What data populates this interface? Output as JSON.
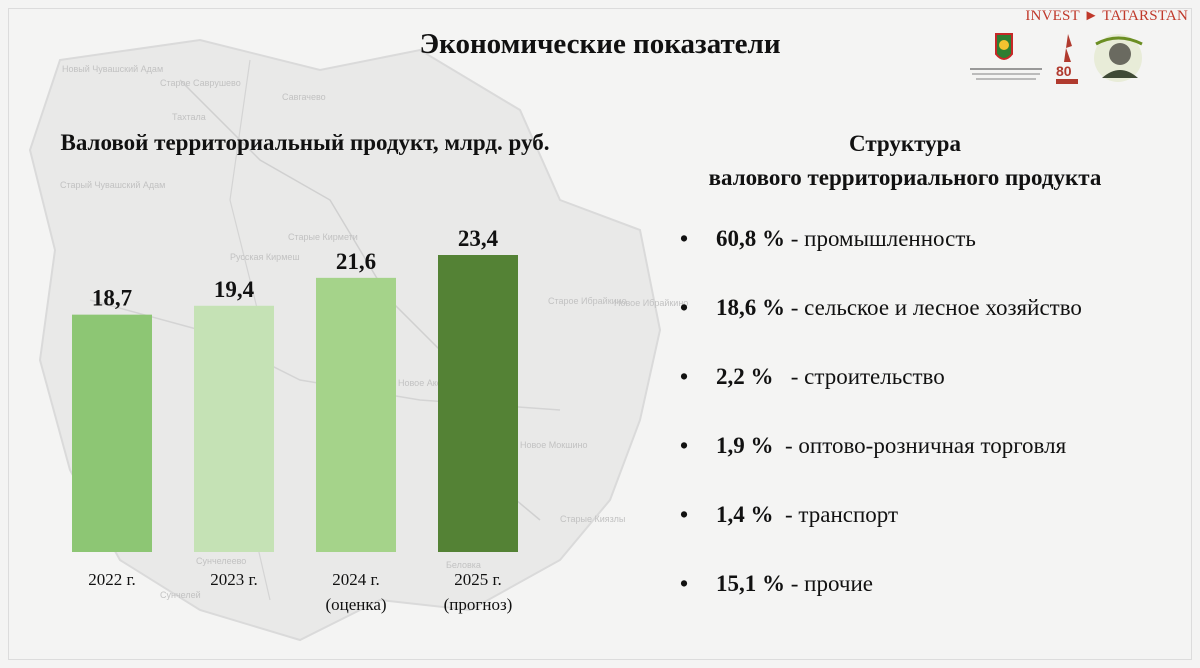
{
  "header": {
    "title": "Экономические показатели",
    "brand": "INVEST ► TATARSTAN"
  },
  "logos": [
    {
      "icon": "district-coat-of-arms",
      "caption": "АКСУБАЕВСКИЙ МУНИЦИПАЛЬНЫЙ РАЙОН РЕСПУБЛИКИ ТАТАРСТАН"
    },
    {
      "icon": "victory-80-emblem",
      "caption": "80 ПОБЕДА"
    },
    {
      "icon": "hasan-tufan-portrait"
    }
  ],
  "map_labels": [
    "Новый Чувашский Адам",
    "Старое Саврушево",
    "Савгачево",
    "Тахтала",
    "Старый Чувашский Адам",
    "Русская Кирмеш",
    "Старые Кирмети",
    "Старое Ибрайкино",
    "Новое Ибрайкино",
    "Новое Аксубаево",
    "Новое Мокшино",
    "Старые Киязлы",
    "Сунчелеево",
    "Сунчелей",
    "Беловка"
  ],
  "chart_data": {
    "type": "bar",
    "title": "Валовой территориальный продукт, млрд. руб.",
    "categories": [
      "2022 г.",
      "2023 г.",
      "2024 г.\n(оценка)",
      "2025 г.\n(прогноз)"
    ],
    "category_lines": [
      [
        "2022 г."
      ],
      [
        "2023 г."
      ],
      [
        "2024 г.",
        "(оценка)"
      ],
      [
        "2025 г.",
        "(прогноз)"
      ]
    ],
    "values": [
      18.7,
      19.4,
      21.6,
      23.4
    ],
    "value_labels": [
      "18,7",
      "19,4",
      "21,6",
      "23,4"
    ],
    "colors": [
      "#8dc674",
      "#c5e2b5",
      "#a5d38a",
      "#548235"
    ],
    "ylim": [
      0,
      26
    ],
    "grid": false,
    "xlabel": "",
    "ylabel": ""
  },
  "structure": {
    "title_line1": "Структура",
    "title_line2": "валового территориального продукта",
    "bullet": "•",
    "items": [
      {
        "pct": "60,8 %",
        "text": " - промышленность"
      },
      {
        "pct": "18,6 %",
        "text": " - сельское и лесное хозяйство"
      },
      {
        "pct": "2,2 %",
        "text": "   - строительство"
      },
      {
        "pct": "1,9 %",
        "text": "  - оптово-розничная торговля"
      },
      {
        "pct": "1,4 %",
        "text": "  - транспорт"
      },
      {
        "pct": "15,1 %",
        "text": " - прочие"
      }
    ]
  }
}
